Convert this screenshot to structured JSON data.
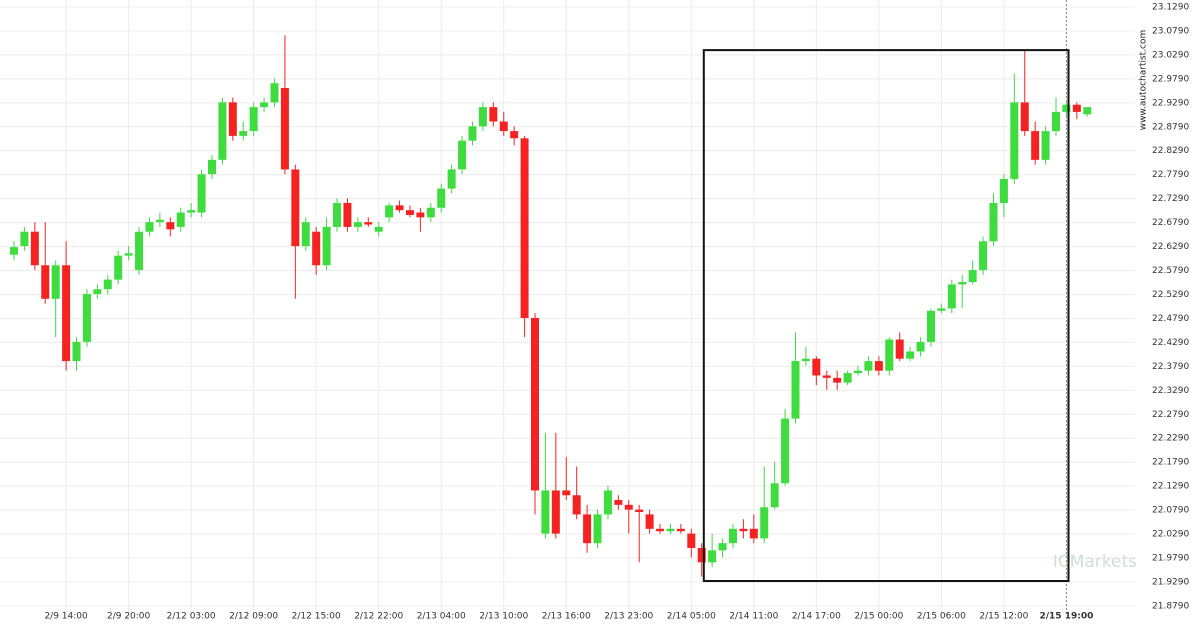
{
  "chart_data": {
    "type": "candlestick",
    "up_color": "#3fdc3f",
    "down_color": "#f52222",
    "grid": true,
    "watermarks": [
      "www.autochartist.com",
      "ICMarkets"
    ],
    "highlight": {
      "x": [
        66.2,
        101.2
      ],
      "y": [
        21.931,
        23.039
      ]
    },
    "ylim": [
      21.858,
      23.1436
    ],
    "yticks": [
      {
        "value": 21.879,
        "label": "21.8790"
      },
      {
        "value": 21.929,
        "label": "21.9290"
      },
      {
        "value": 21.979,
        "label": "21.9790"
      },
      {
        "value": 22.029,
        "label": "22.0290"
      },
      {
        "value": 22.079,
        "label": "22.0790"
      },
      {
        "value": 22.129,
        "label": "22.1290"
      },
      {
        "value": 22.179,
        "label": "22.1790"
      },
      {
        "value": 22.229,
        "label": "22.2290"
      },
      {
        "value": 22.279,
        "label": "22.2790"
      },
      {
        "value": 22.329,
        "label": "22.3290"
      },
      {
        "value": 22.379,
        "label": "22.3790"
      },
      {
        "value": 22.429,
        "label": "22.4290"
      },
      {
        "value": 22.479,
        "label": "22.4790"
      },
      {
        "value": 22.529,
        "label": "22.5290"
      },
      {
        "value": 22.579,
        "label": "22.5790"
      },
      {
        "value": 22.629,
        "label": "22.6290"
      },
      {
        "value": 22.679,
        "label": "22.6790"
      },
      {
        "value": 22.729,
        "label": "22.7290"
      },
      {
        "value": 22.779,
        "label": "22.7790"
      },
      {
        "value": 22.829,
        "label": "22.8290"
      },
      {
        "value": 22.879,
        "label": "22.8790"
      },
      {
        "value": 22.929,
        "label": "22.9290"
      },
      {
        "value": 22.979,
        "label": "22.9790"
      },
      {
        "value": 23.029,
        "label": "23.0290"
      },
      {
        "value": 23.079,
        "label": "23.0790"
      },
      {
        "value": 23.129,
        "label": "23.1290"
      }
    ],
    "categories": [
      null,
      null,
      null,
      null,
      null,
      "2/9 14:00",
      null,
      null,
      null,
      null,
      null,
      "2/9 20:00",
      null,
      null,
      null,
      null,
      null,
      "2/12 03:00",
      null,
      null,
      null,
      null,
      null,
      "2/12 09:00",
      null,
      null,
      null,
      null,
      null,
      "2/12 15:00",
      null,
      null,
      null,
      null,
      null,
      "2/12 22:00",
      null,
      null,
      null,
      null,
      null,
      "2/13 04:00",
      null,
      null,
      null,
      null,
      null,
      "2/13 10:00",
      null,
      null,
      null,
      null,
      null,
      "2/13 16:00",
      null,
      null,
      null,
      null,
      null,
      "2/13 23:00",
      null,
      null,
      null,
      null,
      null,
      "2/14 05:00",
      null,
      null,
      null,
      null,
      null,
      "2/14 11:00",
      null,
      null,
      null,
      null,
      null,
      "2/14 17:00",
      null,
      null,
      null,
      null,
      null,
      "2/15 00:00",
      null,
      null,
      null,
      null,
      null,
      "2/15 06:00",
      null,
      null,
      null,
      null,
      null,
      "2/15 12:00",
      null,
      null,
      null,
      null,
      null,
      "2/15 19:00",
      null,
      null
    ],
    "open": [
      22.612,
      22.63,
      22.66,
      22.59,
      22.52,
      22.59,
      22.39,
      22.43,
      22.53,
      22.54,
      22.56,
      22.61,
      22.58,
      22.66,
      22.68,
      22.68,
      22.67,
      22.7,
      22.7,
      22.78,
      22.81,
      22.93,
      22.86,
      22.87,
      22.92,
      22.93,
      22.96,
      22.79,
      22.63,
      22.66,
      22.59,
      22.67,
      22.72,
      22.67,
      22.68,
      22.66,
      22.69,
      22.715,
      22.705,
      22.7,
      22.69,
      22.71,
      22.75,
      22.79,
      22.85,
      22.88,
      22.92,
      22.89,
      22.87,
      22.855,
      22.48,
      22.03,
      22.12,
      22.12,
      22.11,
      22.07,
      22.01,
      22.07,
      22.1,
      22.09,
      22.08,
      22.07,
      22.04,
      22.035,
      22.04,
      22.03,
      22.0,
      21.97,
      21.995,
      22.01,
      22.04,
      22.04,
      22.02,
      22.085,
      22.135,
      22.27,
      22.39,
      22.395,
      22.36,
      22.355,
      22.345,
      22.365,
      22.37,
      22.39,
      22.37,
      22.435,
      22.395,
      22.41,
      22.43,
      22.495,
      22.5,
      22.55,
      22.555,
      22.58,
      22.64,
      22.72,
      22.77,
      22.93,
      22.87,
      22.81,
      22.87,
      22.91,
      22.925,
      22.905
    ],
    "high": [
      22.64,
      22.67,
      22.68,
      22.68,
      22.6,
      22.64,
      22.44,
      22.54,
      22.55,
      22.57,
      22.62,
      22.63,
      22.67,
      22.69,
      22.7,
      22.69,
      22.71,
      22.72,
      22.79,
      22.82,
      22.94,
      22.94,
      22.89,
      22.93,
      22.94,
      22.98,
      23.07,
      22.8,
      22.69,
      22.67,
      22.69,
      22.73,
      22.73,
      22.69,
      22.69,
      22.68,
      22.72,
      22.725,
      22.715,
      22.71,
      22.72,
      22.76,
      22.8,
      22.86,
      22.89,
      22.93,
      22.93,
      22.91,
      22.88,
      22.86,
      22.49,
      22.24,
      22.24,
      22.19,
      22.17,
      22.09,
      22.08,
      22.13,
      22.11,
      22.1,
      22.09,
      22.08,
      22.05,
      22.05,
      22.05,
      22.04,
      22.01,
      22.03,
      22.02,
      22.05,
      22.06,
      22.07,
      22.17,
      22.18,
      22.29,
      22.45,
      22.42,
      22.4,
      22.37,
      22.37,
      22.37,
      22.38,
      22.4,
      22.4,
      22.44,
      22.45,
      22.42,
      22.44,
      22.5,
      22.51,
      22.56,
      22.57,
      22.6,
      22.65,
      22.74,
      22.78,
      22.99,
      23.04,
      22.89,
      22.88,
      22.94,
      22.93,
      22.93,
      22.92
    ],
    "low": [
      22.6,
      22.62,
      22.58,
      22.51,
      22.44,
      22.37,
      22.37,
      22.42,
      22.52,
      22.53,
      22.55,
      22.6,
      22.57,
      22.65,
      22.67,
      22.65,
      22.66,
      22.69,
      22.69,
      22.77,
      22.8,
      22.85,
      22.85,
      22.86,
      22.91,
      22.92,
      22.78,
      22.52,
      22.62,
      22.57,
      22.58,
      22.66,
      22.66,
      22.66,
      22.67,
      22.65,
      22.68,
      22.7,
      22.69,
      22.66,
      22.68,
      22.7,
      22.74,
      22.78,
      22.84,
      22.87,
      22.88,
      22.86,
      22.84,
      22.44,
      22.07,
      22.02,
      22.02,
      22.1,
      22.06,
      21.99,
      22.0,
      22.06,
      22.08,
      22.03,
      21.97,
      22.03,
      22.03,
      22.03,
      22.03,
      21.98,
      21.94,
      21.96,
      21.98,
      22.0,
      22.02,
      22.01,
      22.01,
      22.08,
      22.13,
      22.26,
      22.38,
      22.34,
      22.33,
      22.33,
      22.34,
      22.36,
      22.36,
      22.36,
      22.36,
      22.39,
      22.39,
      22.4,
      22.42,
      22.49,
      22.49,
      22.5,
      22.55,
      22.57,
      22.63,
      22.69,
      22.76,
      22.86,
      22.8,
      22.8,
      22.86,
      22.9,
      22.895,
      22.9
    ],
    "close": [
      22.628,
      22.66,
      22.59,
      22.52,
      22.59,
      22.39,
      22.43,
      22.53,
      22.54,
      22.56,
      22.61,
      22.615,
      22.66,
      22.68,
      22.685,
      22.665,
      22.7,
      22.705,
      22.78,
      22.81,
      22.93,
      22.86,
      22.87,
      22.92,
      22.93,
      22.97,
      22.79,
      22.63,
      22.68,
      22.59,
      22.67,
      22.72,
      22.67,
      22.68,
      22.675,
      22.67,
      22.715,
      22.705,
      22.695,
      22.69,
      22.71,
      22.75,
      22.79,
      22.85,
      22.88,
      22.92,
      22.89,
      22.87,
      22.855,
      22.48,
      22.12,
      22.12,
      22.03,
      22.11,
      22.07,
      22.01,
      22.07,
      22.12,
      22.09,
      22.08,
      22.075,
      22.04,
      22.035,
      22.04,
      22.035,
      22.0,
      21.97,
      21.995,
      22.01,
      22.04,
      22.035,
      22.02,
      22.085,
      22.135,
      22.27,
      22.39,
      22.395,
      22.36,
      22.355,
      22.345,
      22.365,
      22.37,
      22.39,
      22.37,
      22.435,
      22.395,
      22.41,
      22.43,
      22.495,
      22.5,
      22.55,
      22.555,
      22.58,
      22.64,
      22.72,
      22.77,
      22.93,
      22.87,
      22.81,
      22.87,
      22.91,
      22.925,
      22.91,
      22.92
    ]
  }
}
